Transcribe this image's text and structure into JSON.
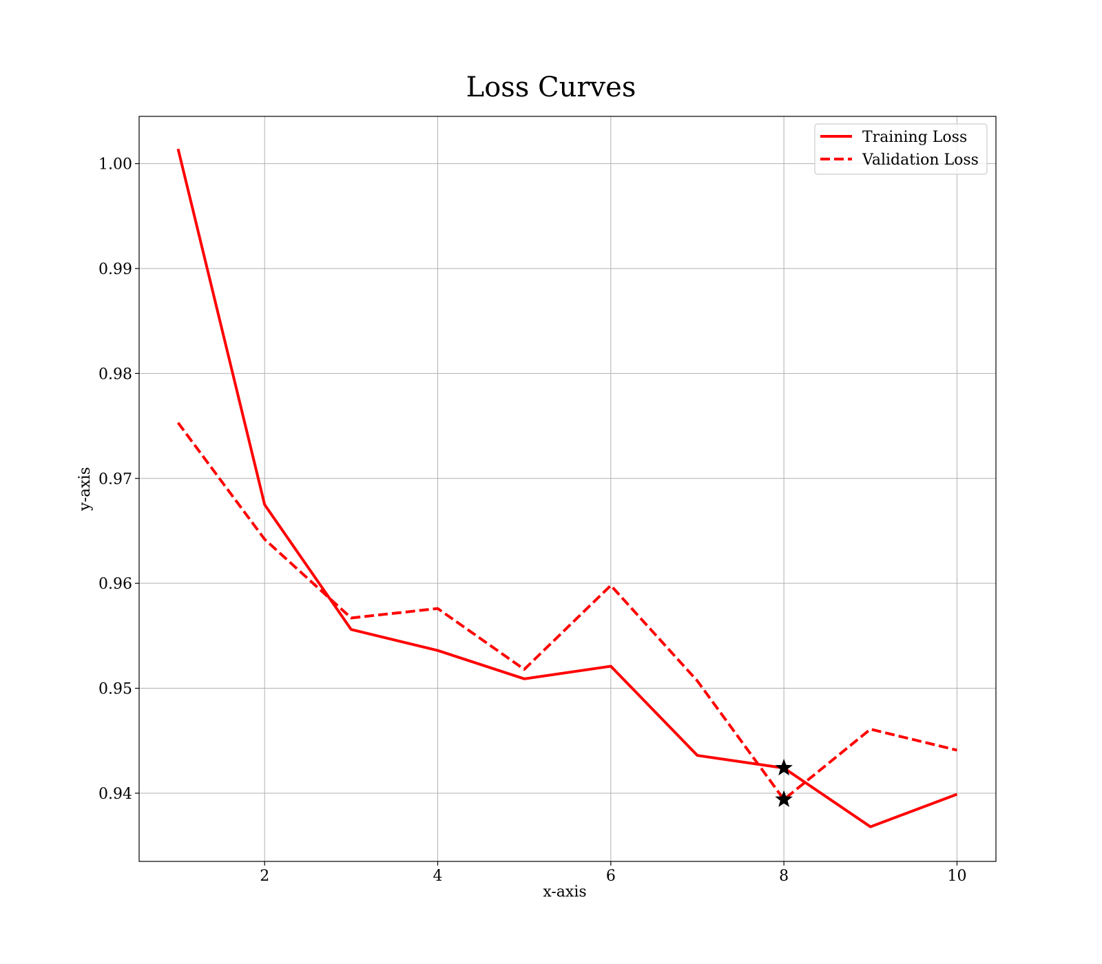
{
  "chart_data": {
    "type": "line",
    "title": "Loss Curves",
    "xlabel": "x-axis",
    "ylabel": "y-axis",
    "xlim": [
      0.55,
      10.45
    ],
    "ylim": [
      0.9335,
      1.0045
    ],
    "xticks": [
      2,
      4,
      6,
      8,
      10
    ],
    "xtick_labels": [
      "2",
      "4",
      "6",
      "8",
      "10"
    ],
    "yticks": [
      0.94,
      0.95,
      0.96,
      0.97,
      0.98,
      0.99,
      1.0
    ],
    "ytick_labels": [
      "0.94",
      "0.95",
      "0.96",
      "0.97",
      "0.98",
      "0.99",
      "1.00"
    ],
    "grid": true,
    "legend_position": "top-right",
    "x": [
      1,
      2,
      3,
      4,
      5,
      6,
      7,
      8,
      9,
      10
    ],
    "series": [
      {
        "name": "Training Loss",
        "style": "solid",
        "color": "#ff0000",
        "values": [
          1.0014,
          0.9675,
          0.9556,
          0.9536,
          0.9509,
          0.9521,
          0.9436,
          0.9424,
          0.9368,
          0.9399
        ],
        "marker": {
          "x": 8,
          "y": 0.9424,
          "symbol": "star"
        }
      },
      {
        "name": "Validation Loss",
        "style": "dashed",
        "color": "#ff0000",
        "values": [
          0.9753,
          0.9642,
          0.9567,
          0.9576,
          0.9518,
          0.9598,
          0.9507,
          0.9394,
          0.9461,
          0.9441
        ],
        "marker": {
          "x": 8,
          "y": 0.9394,
          "symbol": "star"
        }
      }
    ]
  }
}
